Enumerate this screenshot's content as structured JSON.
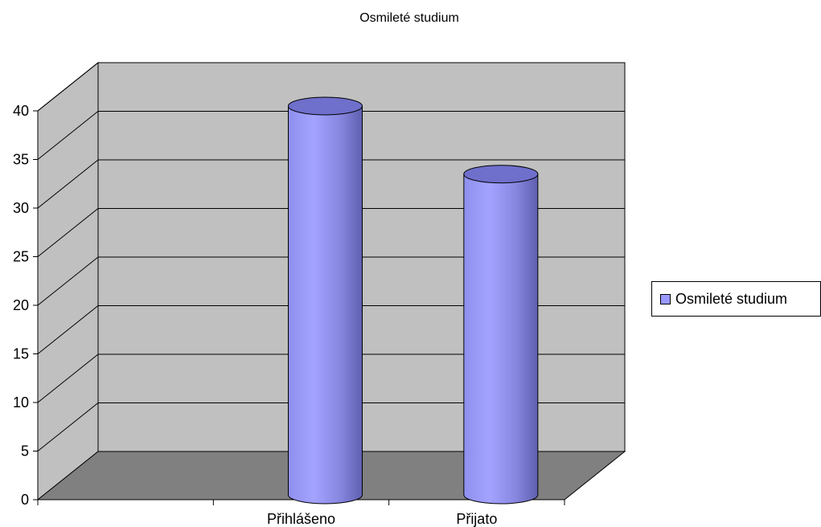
{
  "chart_data": {
    "type": "bar",
    "style": "3d-cylinder",
    "title": "Osmileté studium",
    "categories": [
      "Přihlášeno",
      "Přijato"
    ],
    "series": [
      {
        "name": "Osmileté studium",
        "values": [
          40,
          33
        ]
      }
    ],
    "ylim": [
      0,
      40
    ],
    "yticks": [
      "0",
      "5",
      "10",
      "15",
      "20",
      "25",
      "30",
      "35",
      "40"
    ],
    "grid": true,
    "legend_position": "right",
    "colors": {
      "bar": "#9999ff",
      "wall": "#c0c0c0",
      "floor": "#808080",
      "gridline": "#000000"
    }
  }
}
